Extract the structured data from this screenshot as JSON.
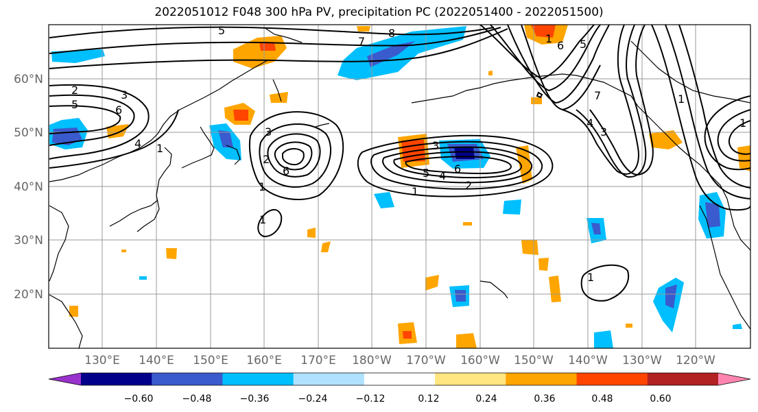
{
  "title": "2022051012 F048 300 hPa PV, precipitation PC (2022051400 - 2022051500)",
  "lon_labels": [
    "130°E",
    "140°E",
    "150°E",
    "160°E",
    "170°E",
    "180°W",
    "170°W",
    "160°W",
    "150°W",
    "140°W",
    "130°W",
    "120°W"
  ],
  "lat_labels": [
    "60°N",
    "50°N",
    "40°N",
    "30°N",
    "20°N"
  ],
  "colorbar": {
    "colors": [
      "#9932cc",
      "#00008b",
      "#3a5bcd",
      "#00bfff",
      "#b0e2ff",
      "#ffffff",
      "#ffe680",
      "#ffa500",
      "#ff4500",
      "#b22222",
      "#ff85b0"
    ],
    "tick_labels": [
      "−0.60",
      "−0.48",
      "−0.36",
      "−0.24",
      "−0.12",
      "0.12",
      "0.24",
      "0.36",
      "0.48",
      "0.60"
    ]
  },
  "contour_labels": [
    "5",
    "7",
    "8",
    "2",
    "3",
    "5",
    "6",
    "4",
    "1",
    "3",
    "1",
    "2",
    "6",
    "3",
    "5",
    "4",
    "6",
    "1",
    "2",
    "1",
    "1",
    "6",
    "5",
    "1",
    "7",
    "4",
    "3",
    "1",
    "1"
  ]
}
